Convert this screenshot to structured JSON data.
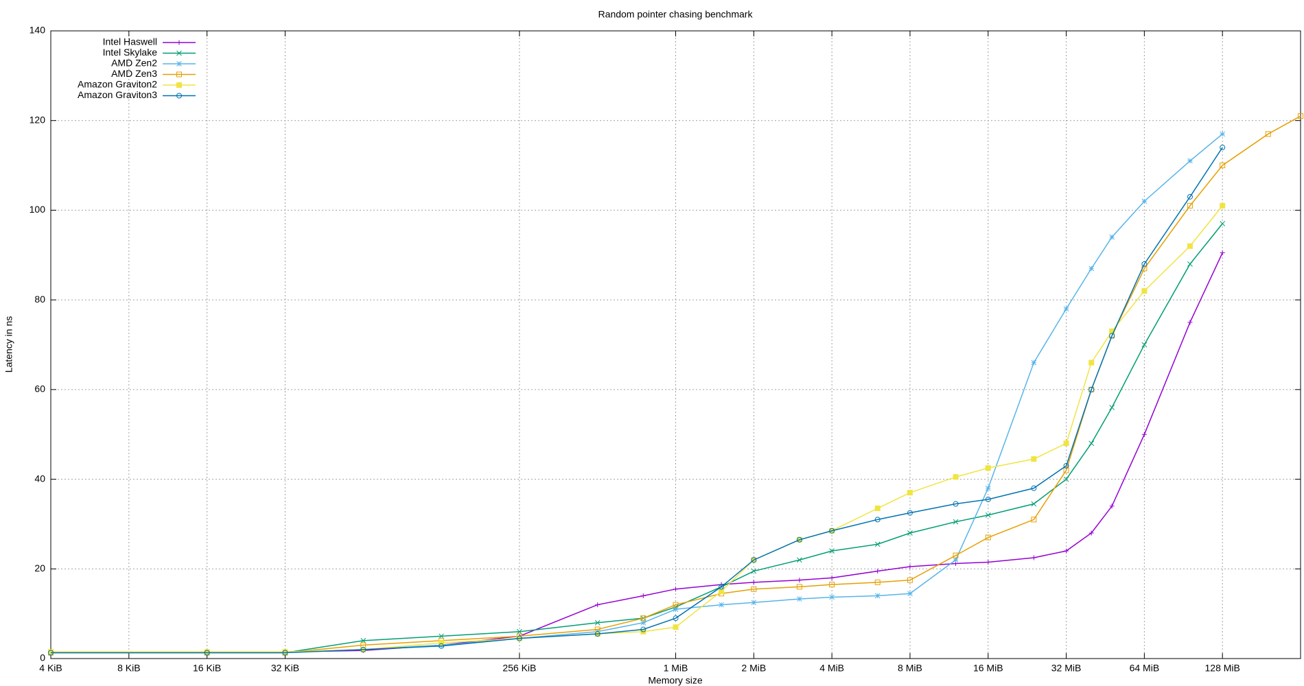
{
  "chart_data": {
    "type": "line",
    "title": "Random pointer chasing benchmark",
    "x_label": "Memory size",
    "y_label": "Latency in ns",
    "x_scale": "log2",
    "grid": true,
    "legend": "top-left",
    "x": [
      4,
      16,
      32,
      64,
      128,
      256,
      512,
      768,
      1024,
      1536,
      2048,
      3072,
      4096,
      6144,
      8192,
      12288,
      16384,
      24576,
      32768,
      40960,
      49152,
      65536,
      98304,
      131072,
      196608,
      262144
    ],
    "xlim": [
      4,
      262144
    ],
    "xticks": [
      {
        "value": 4,
        "label": "4 KiB"
      },
      {
        "value": 8,
        "label": "8 KiB"
      },
      {
        "value": 16,
        "label": "16 KiB"
      },
      {
        "value": 32,
        "label": "32 KiB"
      },
      {
        "value": 256,
        "label": "256 KiB"
      },
      {
        "value": 1024,
        "label": "1 MiB"
      },
      {
        "value": 2048,
        "label": "2 MiB"
      },
      {
        "value": 4096,
        "label": "4 MiB"
      },
      {
        "value": 8192,
        "label": "8 MiB"
      },
      {
        "value": 16384,
        "label": "16 MiB"
      },
      {
        "value": 32768,
        "label": "32 MiB"
      },
      {
        "value": 65536,
        "label": "64 MiB"
      },
      {
        "value": 131072,
        "label": "128 MiB"
      }
    ],
    "ylim": [
      0,
      140
    ],
    "yticks": [
      0,
      20,
      40,
      60,
      80,
      100,
      120,
      140
    ],
    "series": [
      {
        "name": "Intel Haswell",
        "color": "#9400d3",
        "marker": "plus",
        "values": [
          1.5,
          1.5,
          1.5,
          1.8,
          3,
          5,
          12,
          14,
          15.5,
          16.5,
          17,
          17.5,
          18,
          19.5,
          20.5,
          21.2,
          21.5,
          22.5,
          24,
          28,
          34,
          50,
          75,
          90.5,
          null,
          null
        ]
      },
      {
        "name": "Intel Skylake",
        "color": "#009e73",
        "marker": "cross",
        "values": [
          1.3,
          1.3,
          1.3,
          4,
          5,
          6,
          8,
          9,
          11.5,
          16,
          19.5,
          22,
          24,
          25.5,
          28,
          30.5,
          32,
          34.5,
          40,
          48,
          56,
          70,
          88,
          97,
          null,
          null
        ]
      },
      {
        "name": "AMD Zen2",
        "color": "#56b4e9",
        "marker": "star",
        "values": [
          1.5,
          1.5,
          1.5,
          2,
          3,
          4.5,
          6,
          8,
          11,
          12,
          12.5,
          13.3,
          13.7,
          14,
          14.5,
          22,
          38,
          66,
          78,
          87,
          94,
          102,
          111,
          117,
          null,
          null
        ]
      },
      {
        "name": "AMD Zen3",
        "color": "#e69f00",
        "marker": "square",
        "values": [
          1.3,
          1.3,
          1.3,
          3,
          4,
          5,
          6.5,
          9,
          12,
          14.5,
          15.5,
          16,
          16.5,
          17,
          17.5,
          23,
          27,
          31,
          42,
          60,
          72,
          87,
          101,
          110,
          117,
          121
        ]
      },
      {
        "name": "Amazon Graviton2",
        "color": "#f0e442",
        "marker": "filled-square",
        "values": [
          1.5,
          1.5,
          1.5,
          2,
          3.5,
          4.5,
          5.5,
          6,
          7,
          15,
          22,
          26.5,
          28.5,
          33.5,
          37,
          40.5,
          42.5,
          44.5,
          48,
          66,
          73,
          82,
          92,
          101,
          null,
          null
        ]
      },
      {
        "name": "Amazon Graviton3",
        "color": "#0072b2",
        "marker": "circle",
        "values": [
          1.3,
          1.3,
          1.3,
          2,
          2.8,
          4.5,
          5.5,
          6.5,
          9,
          16,
          22,
          26.5,
          28.5,
          31,
          32.5,
          34.5,
          35.5,
          38,
          43,
          60,
          72,
          88,
          103,
          114,
          null,
          null
        ]
      }
    ]
  }
}
